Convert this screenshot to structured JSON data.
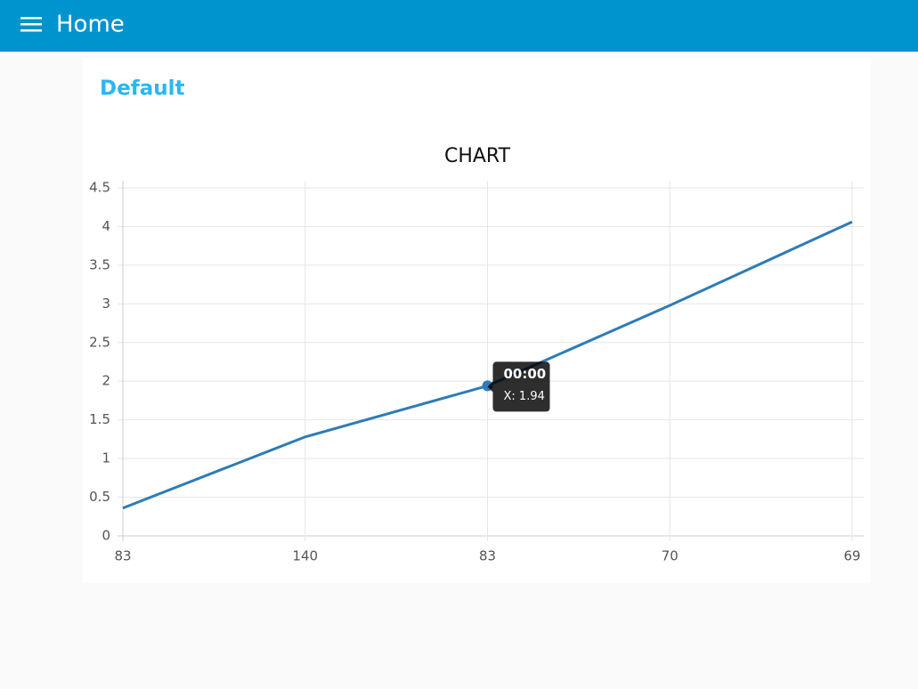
{
  "header": {
    "title": "Home"
  },
  "group": {
    "title": "Default"
  },
  "chart_data": {
    "type": "line",
    "title": "CHART",
    "categories": [
      "83",
      "140",
      "83",
      "70",
      "69"
    ],
    "values": [
      0.36,
      1.28,
      1.94,
      2.98,
      4.06
    ],
    "color": "#2e7bb6",
    "ylim": [
      0,
      4.5
    ],
    "yticks": [
      0,
      0.5,
      1,
      1.5,
      2,
      2.5,
      3,
      3.5,
      4,
      4.5
    ],
    "grid": true,
    "tooltip": {
      "title": "00:00",
      "text": "X: 1.94"
    }
  }
}
